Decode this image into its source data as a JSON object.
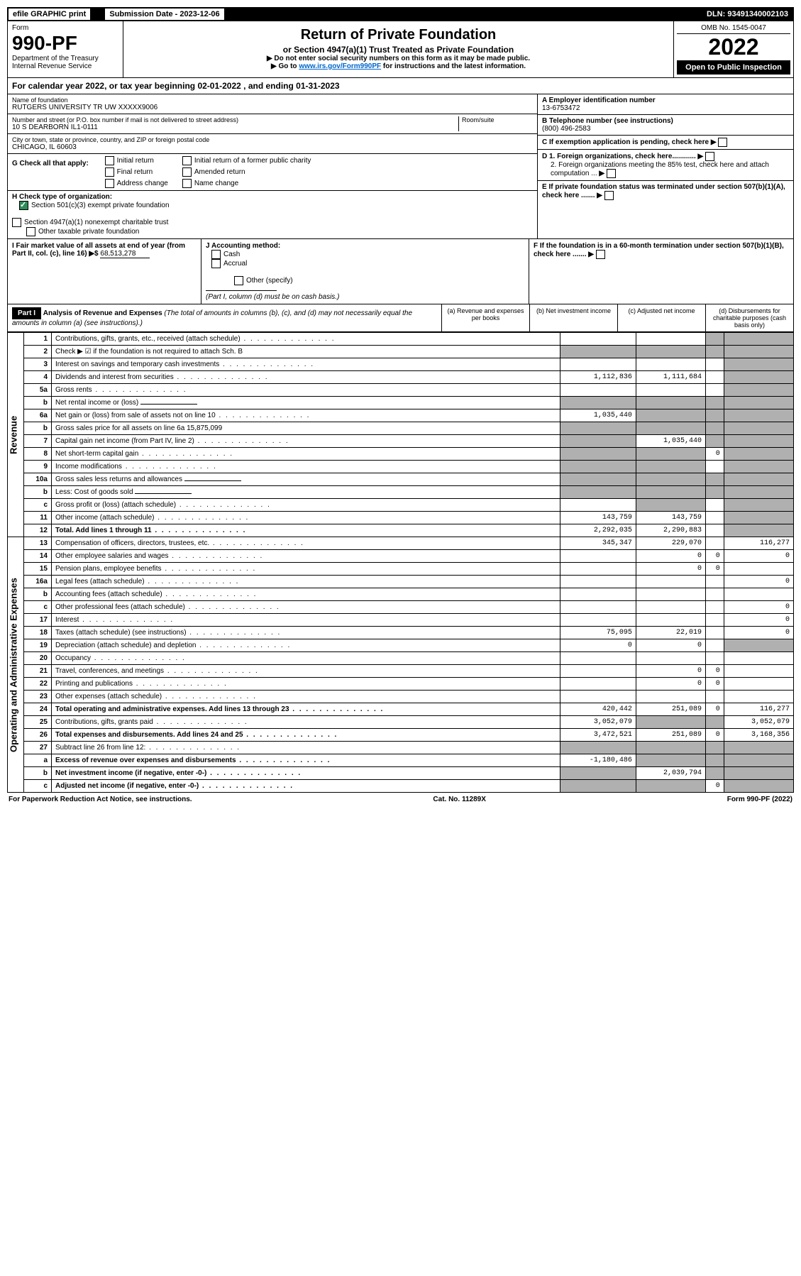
{
  "top": {
    "efile": "efile GRAPHIC print",
    "sub_label": "Submission Date - 2023-12-06",
    "dln": "DLN: 93491340002103"
  },
  "header": {
    "form_word": "Form",
    "form_number": "990-PF",
    "dept": "Department of the Treasury",
    "irs": "Internal Revenue Service",
    "title": "Return of Private Foundation",
    "subtitle": "or Section 4947(a)(1) Trust Treated as Private Foundation",
    "instr1": "▶ Do not enter social security numbers on this form as it may be made public.",
    "instr2_pre": "▶ Go to ",
    "instr2_link": "www.irs.gov/Form990PF",
    "instr2_post": " for instructions and the latest information.",
    "omb": "OMB No. 1545-0047",
    "year": "2022",
    "open": "Open to Public Inspection"
  },
  "cal_year": "For calendar year 2022, or tax year beginning 02-01-2022           , and ending 01-31-2023",
  "foundation": {
    "name_label": "Name of foundation",
    "name": "RUTGERS UNIVERSITY TR UW XXXXX9006",
    "addr_label": "Number and street (or P.O. box number if mail is not delivered to street address)",
    "addr": "10 S DEARBORN IL1-0111",
    "room_label": "Room/suite",
    "city_label": "City or town, state or province, country, and ZIP or foreign postal code",
    "city": "CHICAGO, IL  60603",
    "ein_label": "A Employer identification number",
    "ein": "13-6753472",
    "phone_label": "B Telephone number (see instructions)",
    "phone": "(800) 496-2583",
    "c_label": "C If exemption application is pending, check here",
    "d1": "D 1. Foreign organizations, check here............",
    "d2": "2. Foreign organizations meeting the 85% test, check here and attach computation ...",
    "e": "E  If private foundation status was terminated under section 507(b)(1)(A), check here .......",
    "f": "F  If the foundation is in a 60-month termination under section 507(b)(1)(B), check here .......",
    "g_label": "G Check all that apply:",
    "g_opts": [
      "Initial return",
      "Final return",
      "Address change",
      "Initial return of a former public charity",
      "Amended return",
      "Name change"
    ],
    "h_label": "H Check type of organization:",
    "h_501c3": "Section 501(c)(3) exempt private foundation",
    "h_4947": "Section 4947(a)(1) nonexempt charitable trust",
    "h_other": "Other taxable private foundation",
    "i_label": "I Fair market value of all assets at end of year (from Part II, col. (c), line 16) ▶$",
    "i_val": "68,513,278",
    "j_label": "J Accounting method:",
    "j_cash": "Cash",
    "j_accrual": "Accrual",
    "j_other": "Other (specify)",
    "j_note": "(Part I, column (d) must be on cash basis.)"
  },
  "part1": {
    "label": "Part I",
    "title": "Analysis of Revenue and Expenses",
    "title_note": "(The total of amounts in columns (b), (c), and (d) may not necessarily equal the amounts in column (a) (see instructions).)",
    "cols": {
      "a": "(a)   Revenue and expenses per books",
      "b": "(b)   Net investment income",
      "c": "(c)   Adjusted net income",
      "d": "(d)   Disbursements for charitable purposes (cash basis only)"
    }
  },
  "sections": {
    "revenue": "Revenue",
    "operating": "Operating and Administrative Expenses"
  },
  "rows": [
    {
      "n": "1",
      "d": "Contributions, gifts, grants, etc., received (attach schedule)",
      "a": "",
      "b": "",
      "c": "s",
      "dd": "s"
    },
    {
      "n": "2",
      "d": "Check ▶ ☑ if the foundation is not required to attach Sch. B",
      "a": "s",
      "b": "s",
      "c": "s",
      "dd": "s",
      "dotsOff": true
    },
    {
      "n": "3",
      "d": "Interest on savings and temporary cash investments",
      "a": "",
      "b": "",
      "c": "",
      "dd": "s"
    },
    {
      "n": "4",
      "d": "Dividends and interest from securities",
      "a": "1,112,836",
      "b": "1,111,684",
      "c": "",
      "dd": "s"
    },
    {
      "n": "5a",
      "d": "Gross rents",
      "a": "",
      "b": "",
      "c": "",
      "dd": "s"
    },
    {
      "n": "b",
      "d": "Net rental income or (loss)",
      "a": "s",
      "b": "s",
      "c": "s",
      "dd": "s",
      "inline": true
    },
    {
      "n": "6a",
      "d": "Net gain or (loss) from sale of assets not on line 10",
      "a": "1,035,440",
      "b": "s",
      "c": "s",
      "dd": "s"
    },
    {
      "n": "b",
      "d": "Gross sales price for all assets on line 6a           15,875,099",
      "a": "s",
      "b": "s",
      "c": "s",
      "dd": "s",
      "dotsOff": true
    },
    {
      "n": "7",
      "d": "Capital gain net income (from Part IV, line 2)",
      "a": "s",
      "b": "1,035,440",
      "c": "s",
      "dd": "s"
    },
    {
      "n": "8",
      "d": "Net short-term capital gain",
      "a": "s",
      "b": "s",
      "c": "0",
      "dd": "s"
    },
    {
      "n": "9",
      "d": "Income modifications",
      "a": "s",
      "b": "s",
      "c": "",
      "dd": "s"
    },
    {
      "n": "10a",
      "d": "Gross sales less returns and allowances",
      "a": "s",
      "b": "s",
      "c": "s",
      "dd": "s",
      "inline": true,
      "dotsOff": true
    },
    {
      "n": "b",
      "d": "Less: Cost of goods sold",
      "a": "s",
      "b": "s",
      "c": "s",
      "dd": "s",
      "inline": true
    },
    {
      "n": "c",
      "d": "Gross profit or (loss) (attach schedule)",
      "a": "",
      "b": "s",
      "c": "",
      "dd": "s"
    },
    {
      "n": "11",
      "d": "Other income (attach schedule)",
      "a": "143,759",
      "b": "143,759",
      "c": "",
      "dd": "s"
    },
    {
      "n": "12",
      "d": "Total. Add lines 1 through 11",
      "a": "2,292,035",
      "b": "2,290,883",
      "c": "",
      "dd": "s",
      "bold": true
    }
  ],
  "exp_rows": [
    {
      "n": "13",
      "d": "Compensation of officers, directors, trustees, etc.",
      "a": "345,347",
      "b": "229,070",
      "c": "",
      "dd": "116,277"
    },
    {
      "n": "14",
      "d": "Other employee salaries and wages",
      "a": "",
      "b": "0",
      "c": "0",
      "dd": "0"
    },
    {
      "n": "15",
      "d": "Pension plans, employee benefits",
      "a": "",
      "b": "0",
      "c": "0",
      "dd": ""
    },
    {
      "n": "16a",
      "d": "Legal fees (attach schedule)",
      "a": "",
      "b": "",
      "c": "",
      "dd": "0"
    },
    {
      "n": "b",
      "d": "Accounting fees (attach schedule)",
      "a": "",
      "b": "",
      "c": "",
      "dd": ""
    },
    {
      "n": "c",
      "d": "Other professional fees (attach schedule)",
      "a": "",
      "b": "",
      "c": "",
      "dd": "0"
    },
    {
      "n": "17",
      "d": "Interest",
      "a": "",
      "b": "",
      "c": "",
      "dd": "0"
    },
    {
      "n": "18",
      "d": "Taxes (attach schedule) (see instructions)",
      "a": "75,095",
      "b": "22,019",
      "c": "",
      "dd": "0"
    },
    {
      "n": "19",
      "d": "Depreciation (attach schedule) and depletion",
      "a": "0",
      "b": "0",
      "c": "",
      "dd": "s"
    },
    {
      "n": "20",
      "d": "Occupancy",
      "a": "",
      "b": "",
      "c": "",
      "dd": ""
    },
    {
      "n": "21",
      "d": "Travel, conferences, and meetings",
      "a": "",
      "b": "0",
      "c": "0",
      "dd": ""
    },
    {
      "n": "22",
      "d": "Printing and publications",
      "a": "",
      "b": "0",
      "c": "0",
      "dd": ""
    },
    {
      "n": "23",
      "d": "Other expenses (attach schedule)",
      "a": "",
      "b": "",
      "c": "",
      "dd": ""
    },
    {
      "n": "24",
      "d": "Total operating and administrative expenses. Add lines 13 through 23",
      "a": "420,442",
      "b": "251,089",
      "c": "0",
      "dd": "116,277",
      "bold": true
    },
    {
      "n": "25",
      "d": "Contributions, gifts, grants paid",
      "a": "3,052,079",
      "b": "s",
      "c": "s",
      "dd": "3,052,079"
    },
    {
      "n": "26",
      "d": "Total expenses and disbursements. Add lines 24 and 25",
      "a": "3,472,521",
      "b": "251,089",
      "c": "0",
      "dd": "3,168,356",
      "bold": true
    },
    {
      "n": "27",
      "d": "Subtract line 26 from line 12:",
      "a": "s",
      "b": "s",
      "c": "s",
      "dd": "s"
    },
    {
      "n": "a",
      "d": "Excess of revenue over expenses and disbursements",
      "a": "-1,180,486",
      "b": "s",
      "c": "s",
      "dd": "s",
      "bold": true
    },
    {
      "n": "b",
      "d": "Net investment income (if negative, enter -0-)",
      "a": "s",
      "b": "2,039,794",
      "c": "s",
      "dd": "s",
      "bold": true
    },
    {
      "n": "c",
      "d": "Adjusted net income (if negative, enter -0-)",
      "a": "s",
      "b": "s",
      "c": "0",
      "dd": "s",
      "bold": true
    }
  ],
  "footer": {
    "left": "For Paperwork Reduction Act Notice, see instructions.",
    "mid": "Cat. No. 11289X",
    "right": "Form 990-PF (2022)"
  },
  "colors": {
    "shaded": "#b0b0b0",
    "link": "#0066cc",
    "check_green": "#2e8b57"
  }
}
